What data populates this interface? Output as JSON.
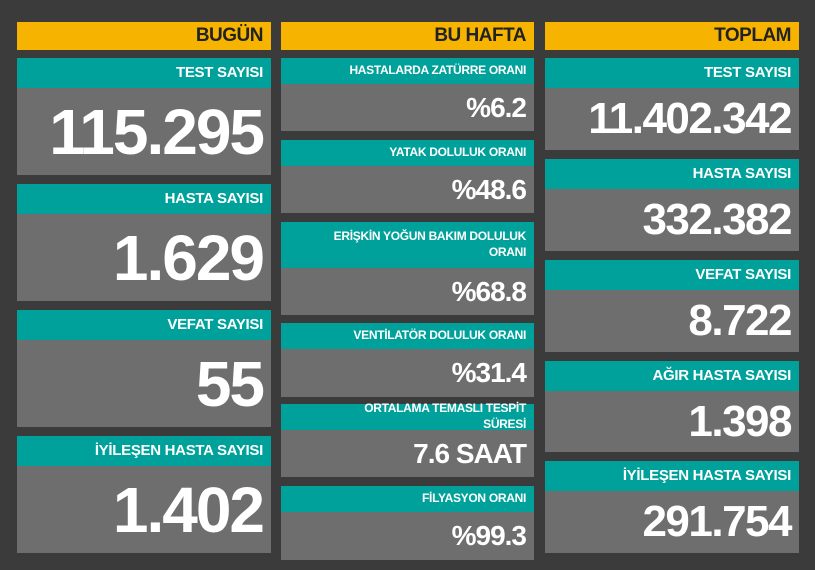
{
  "columns": [
    {
      "title": "BUGÜN",
      "cards": [
        {
          "label": "TEST SAYISI",
          "value": "115.295"
        },
        {
          "label": "HASTA SAYISI",
          "value": "1.629"
        },
        {
          "label": "VEFAT SAYISI",
          "value": "55"
        },
        {
          "label": "İYİLEŞEN HASTA SAYISI",
          "value": "1.402"
        }
      ]
    },
    {
      "title": "BU HAFTA",
      "cards": [
        {
          "label": "HASTALARDA ZATÜRRE ORANI",
          "value": "%6.2"
        },
        {
          "label": "YATAK DOLULUK ORANI",
          "value": "%48.6"
        },
        {
          "label": "ERİŞKİN YOĞUN BAKIM DOLULUK ORANI",
          "value": "%68.8"
        },
        {
          "label": "VENTİLATÖR DOLULUK ORANI",
          "value": "%31.4"
        },
        {
          "label": "ORTALAMA TEMASLI TESPİT SÜRESİ",
          "value": "7.6 SAAT"
        },
        {
          "label": "FİLYASYON ORANI",
          "value": "%99.3"
        }
      ]
    },
    {
      "title": "TOPLAM",
      "cards": [
        {
          "label": "TEST SAYISI",
          "value": "11.402.342"
        },
        {
          "label": "HASTA SAYISI",
          "value": "332.382"
        },
        {
          "label": "VEFAT SAYISI",
          "value": "8.722"
        },
        {
          "label": "AĞIR HASTA SAYISI",
          "value": "1.398"
        },
        {
          "label": "İYİLEŞEN HASTA SAYISI",
          "value": "291.754"
        }
      ]
    }
  ]
}
